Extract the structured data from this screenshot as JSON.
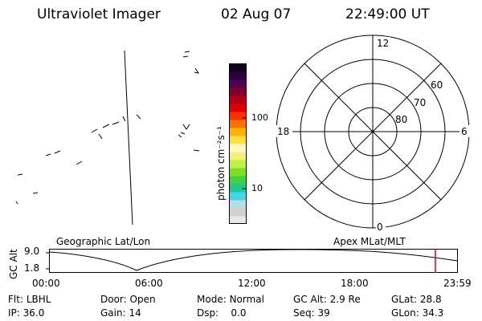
{
  "header": {
    "instrument": "Ultraviolet Imager",
    "date": "02 Aug 07",
    "time": "22:49:00 UT"
  },
  "colorbar": {
    "unit_label": "photon cm⁻²s⁻¹",
    "ticks": [
      "100",
      "10"
    ],
    "colors": [
      "#e8e8e8",
      "#d0d0d0",
      "#b0e0e8",
      "#40d8e8",
      "#20c890",
      "#40d040",
      "#80e020",
      "#c0f040",
      "#f0f080",
      "#fff8c0",
      "#ffe040",
      "#ffb000",
      "#ff7000",
      "#ff3000",
      "#e00000",
      "#b00018",
      "#800030",
      "#500050",
      "#2a0040",
      "#100020"
    ]
  },
  "polar": {
    "mlt_labels": {
      "top": "12",
      "left": "18",
      "right": "6",
      "bottom": "0"
    },
    "lat_labels": [
      "60",
      "70",
      "80"
    ]
  },
  "timeline": {
    "left_label": "Geographic Lat/Lon",
    "right_label": "Apex MLat/MLT",
    "ylabel": "GC Alt",
    "yticks": [
      "9.0",
      "1.8"
    ],
    "xticks": [
      "00:00",
      "06:00",
      "12:00",
      "18:00",
      "23:59"
    ],
    "marker_color": "#e00000"
  },
  "footer": {
    "row1": [
      {
        "label": "Flt:",
        "value": "LBHL"
      },
      {
        "label": "Door:",
        "value": "Open"
      },
      {
        "label": "Mode:",
        "value": "Normal"
      },
      {
        "label": "GC Alt:",
        "value": "2.9 Re"
      },
      {
        "label": "GLat:",
        "value": "28.8"
      }
    ],
    "row2": [
      {
        "label": "IP:",
        "value": "36.0"
      },
      {
        "label": "Gain:",
        "value": "14"
      },
      {
        "label": "Dsp:",
        "value": "0.0"
      },
      {
        "label": "Seq:",
        "value": "39"
      },
      {
        "label": "GLon:",
        "value": "34.3"
      }
    ]
  }
}
